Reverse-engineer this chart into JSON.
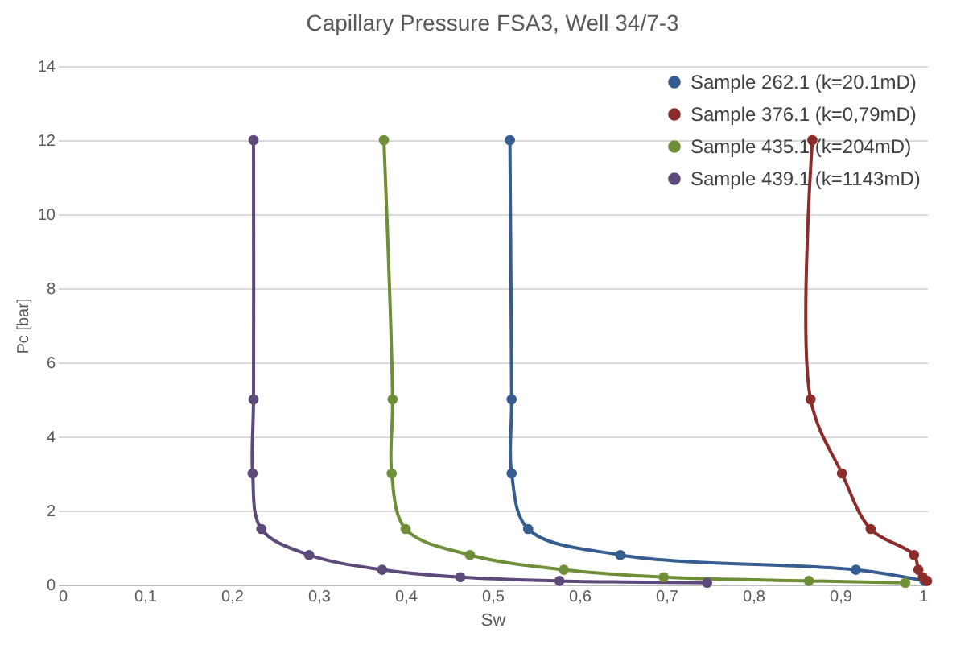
{
  "chart_data": {
    "type": "line",
    "title": "Capillary Pressure FSA3, Well 34/7-3",
    "xlabel": "Sw",
    "ylabel": "Pc [bar]",
    "xlim": [
      0,
      1
    ],
    "xticks": [
      0,
      {
        "value": 0.1,
        "label": "0,1"
      },
      {
        "value": 0.2,
        "label": "0,2"
      },
      {
        "value": 0.3,
        "label": "0,3"
      },
      {
        "value": 0.4,
        "label": "0,4"
      },
      {
        "value": 0.5,
        "label": "0,5"
      },
      {
        "value": 0.6,
        "label": "0,6"
      },
      {
        "value": 0.7,
        "label": "0,7"
      },
      {
        "value": 0.8,
        "label": "0,8"
      },
      {
        "value": 0.9,
        "label": "0,9"
      },
      1
    ],
    "ylim": [
      0,
      14
    ],
    "yticks": [
      0,
      2,
      4,
      6,
      8,
      10,
      12,
      14
    ],
    "grid": "y",
    "legend": "top right",
    "marker": "circle",
    "line_style": "solid",
    "series": [
      {
        "name": "Sample 262.1 (k=20.1mD)",
        "color": "#355d8f",
        "x": [
          0.52,
          0.522,
          0.522,
          0.541,
          0.647,
          0.918,
          0.997
        ],
        "values": [
          12,
          5,
          3,
          1.5,
          0.8,
          0.4,
          0.1
        ]
      },
      {
        "name": "Sample 376.1 (k=0,79mD)",
        "color": "#8c2d2b",
        "x": [
          0.868,
          0.866,
          0.902,
          0.935,
          0.985,
          0.99,
          0.995,
          1
        ],
        "values": [
          12,
          5,
          3,
          1.5,
          0.8,
          0.4,
          0.2,
          0.1
        ]
      },
      {
        "name": "Sample 435.1 (k=204mD)",
        "color": "#6e8f38",
        "x": [
          0.375,
          0.385,
          0.384,
          0.4,
          0.474,
          0.582,
          0.697,
          0.864,
          0.975
        ],
        "values": [
          12,
          5,
          3,
          1.5,
          0.8,
          0.4,
          0.2,
          0.1,
          0.05
        ]
      },
      {
        "name": "Sample 439.1 (k=1143mD)",
        "color": "#5d4a7b",
        "x": [
          0.225,
          0.225,
          0.224,
          0.234,
          0.289,
          0.373,
          0.463,
          0.577,
          0.747
        ],
        "values": [
          12,
          5,
          3,
          1.5,
          0.8,
          0.4,
          0.2,
          0.1,
          0.05
        ]
      }
    ]
  }
}
